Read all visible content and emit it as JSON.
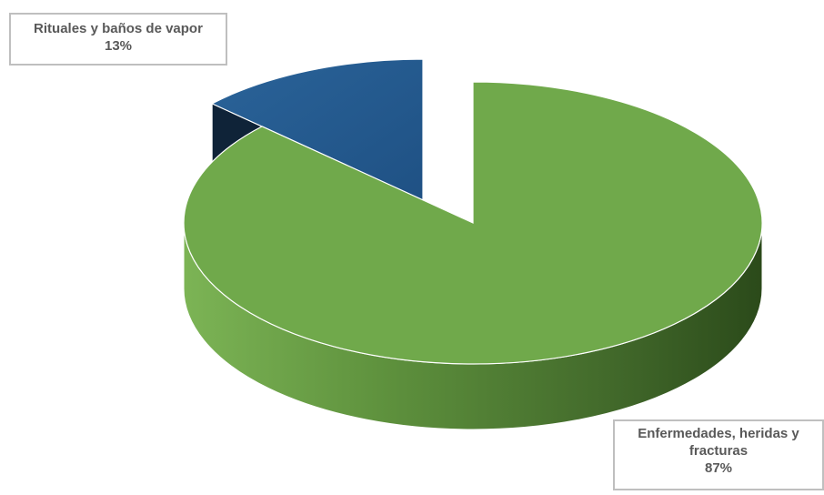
{
  "chart_data": {
    "type": "pie",
    "title": "",
    "labels": [
      "Rituales y baños de vapor",
      "Enfermedades, heridas y fracturas"
    ],
    "values": [
      13,
      87
    ],
    "percent_labels": [
      "13%",
      "87%"
    ],
    "colors": [
      "#245a8f",
      "#70a94b"
    ],
    "side_colors": [
      "#0f2338",
      "#3f6428"
    ],
    "exploded_slice": "Rituales y baños de vapor",
    "style": "3d"
  },
  "labels": {
    "rituales": {
      "name": "Rituales y baños de vapor",
      "pct": "13%"
    },
    "enfermedades": {
      "name_line1": "Enfermedades, heridas y",
      "name_line2": "fracturas",
      "pct": "87%"
    }
  }
}
